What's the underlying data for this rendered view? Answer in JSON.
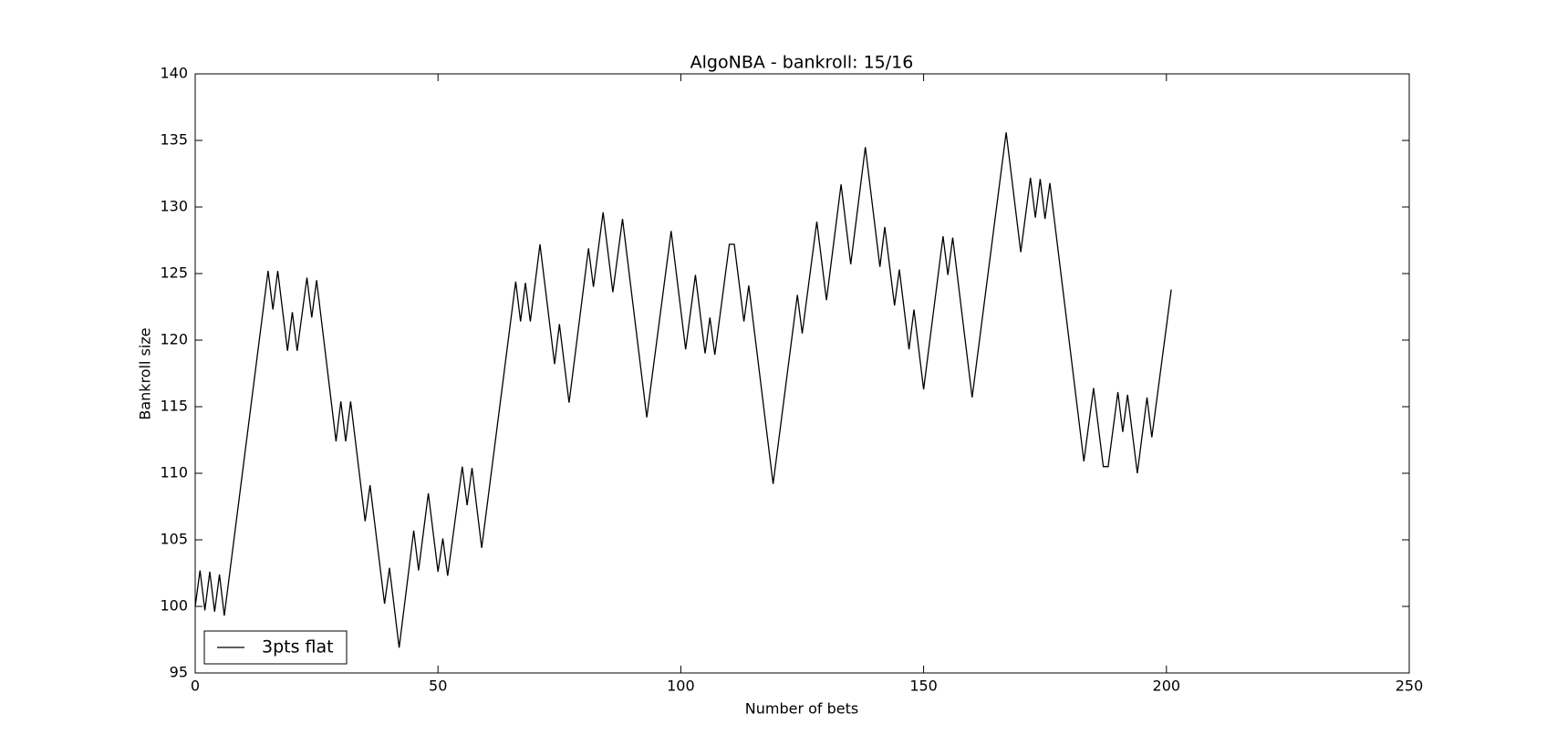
{
  "chart_data": {
    "type": "line",
    "title": "AlgoNBA - bankroll: 15/16",
    "x_label": "Number of bets",
    "y_label": "Bankroll size",
    "x": [
      0,
      1,
      2,
      3,
      4,
      5,
      6,
      15,
      16,
      17,
      19,
      20,
      21,
      23,
      24,
      25,
      29,
      30,
      31,
      32,
      35,
      36,
      39,
      40,
      42,
      45,
      46,
      48,
      50,
      51,
      52,
      55,
      56,
      57,
      59,
      66,
      67,
      68,
      69,
      71,
      74,
      75,
      77,
      81,
      82,
      84,
      86,
      88,
      93,
      98,
      101,
      103,
      105,
      106,
      107,
      110,
      111,
      113,
      114,
      119,
      124,
      125,
      128,
      130,
      133,
      135,
      138,
      141,
      142,
      144,
      145,
      147,
      148,
      150,
      154,
      155,
      156,
      160,
      167,
      170,
      172,
      173,
      174,
      175,
      176,
      183,
      185,
      187,
      188,
      190,
      191,
      192,
      194,
      196,
      197,
      201
    ],
    "series": [
      {
        "name": "3pts flat",
        "color": "#000000",
        "values": [
          100,
          102.7,
          99.7,
          102.6,
          99.6,
          102.4,
          99.3,
          125.2,
          122.3,
          125.2,
          119.2,
          122.1,
          119.2,
          124.7,
          121.7,
          124.5,
          112.4,
          115.4,
          112.4,
          115.4,
          106.4,
          109.1,
          100.2,
          102.9,
          96.9,
          105.7,
          102.7,
          108.5,
          102.6,
          105.1,
          102.3,
          110.5,
          107.6,
          110.4,
          104.4,
          124.4,
          121.4,
          124.3,
          121.4,
          127.2,
          118.2,
          121.2,
          115.3,
          126.9,
          124.0,
          129.6,
          123.6,
          129.1,
          114.2,
          128.2,
          119.3,
          124.9,
          119.0,
          121.7,
          118.9,
          127.2,
          127.2,
          121.4,
          124.1,
          109.2,
          123.4,
          120.5,
          128.9,
          123.0,
          131.7,
          125.7,
          134.5,
          125.5,
          128.5,
          122.6,
          125.3,
          119.3,
          122.3,
          116.3,
          127.8,
          124.9,
          127.7,
          115.7,
          135.6,
          126.6,
          132.2,
          129.2,
          132.1,
          129.1,
          131.8,
          110.9,
          116.4,
          110.5,
          110.5,
          116.1,
          113.1,
          115.9,
          110.0,
          115.7,
          112.7,
          123.8
        ]
      }
    ],
    "xlim": [
      0,
      250
    ],
    "xticks": [
      0,
      50,
      100,
      150,
      200,
      250
    ],
    "ylim": [
      95,
      140
    ],
    "yticks": [
      95,
      100,
      105,
      110,
      115,
      120,
      125,
      130,
      135,
      140
    ],
    "grid": false,
    "legend": "lower left"
  }
}
